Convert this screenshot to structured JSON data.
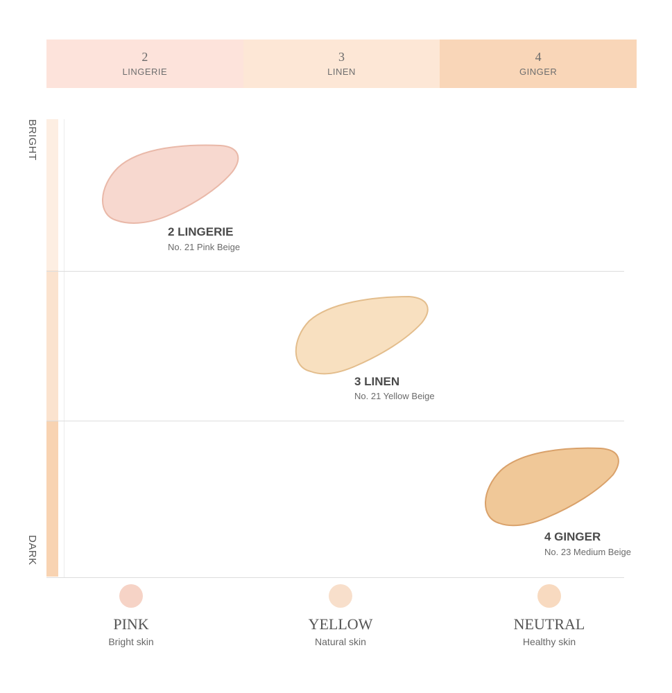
{
  "header": {
    "cells": [
      {
        "number": "2",
        "name": "LINGERIE",
        "color": "#fde3db"
      },
      {
        "number": "3",
        "name": "LINEN",
        "color": "#fde7d6"
      },
      {
        "number": "4",
        "name": "GINGER",
        "color": "#f9d6b8"
      }
    ]
  },
  "axis": {
    "top_label": "BRIGHT",
    "bottom_label": "DARK",
    "colors": [
      "#fdeee2",
      "#fbe3cf",
      "#f8d3b2"
    ]
  },
  "shades": [
    {
      "title": "2 LINGERIE",
      "subtitle": "No. 21  Pink Beige",
      "color": "#f7d8cf",
      "edge": "#e9b8a8"
    },
    {
      "title": "3 LINEN",
      "subtitle": "No. 21 Yellow Beige",
      "color": "#f8e0c0",
      "edge": "#e3bd8c"
    },
    {
      "title": "4 GINGER",
      "subtitle": "No. 23 Medium Beige",
      "color": "#f0c898",
      "edge": "#d9a16a"
    }
  ],
  "tones": [
    {
      "name": "PINK",
      "desc": "Bright skin",
      "color": "#f6d3c6"
    },
    {
      "name": "YELLOW",
      "desc": "Natural skin",
      "color": "#f8dfcb"
    },
    {
      "name": "NEUTRAL",
      "desc": "Healthy skin",
      "color": "#f8dac0"
    }
  ]
}
